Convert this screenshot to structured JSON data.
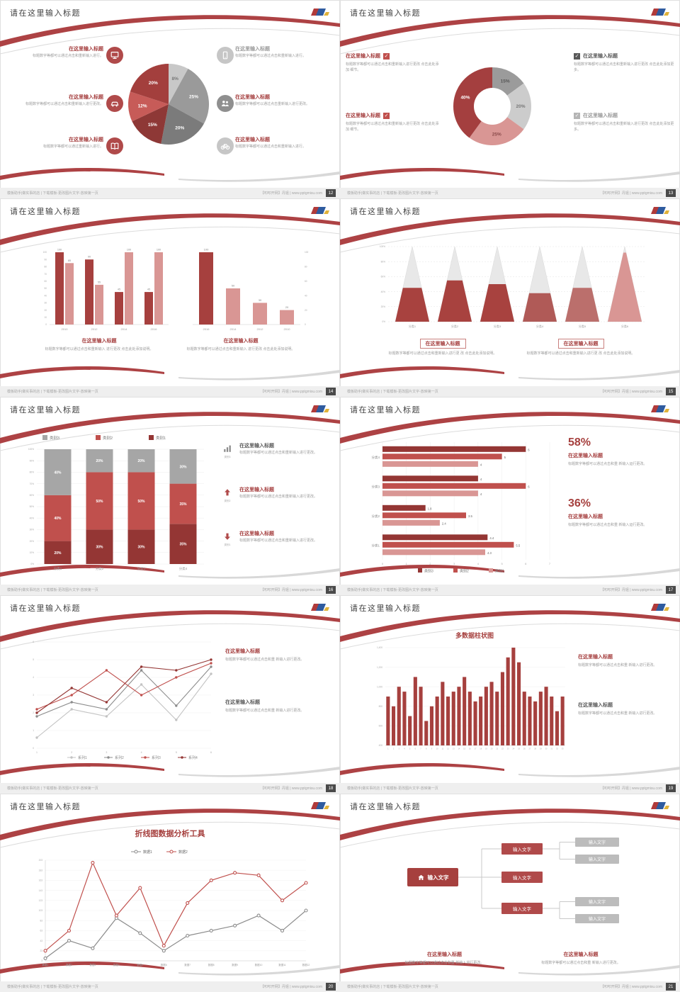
{
  "common": {
    "slide_title": "请在这里输入标题",
    "footer_left": "模板助手|做实事的店 | 下载模板-更改图片文字-放映第一页",
    "footer_right": "【叩叩开网】丹姐 | www.pptgmisu.com",
    "accent_color": "#ad4244"
  },
  "slides": [
    {
      "title": "请在这里输入标题",
      "page_number": "12",
      "type": "pie_callouts",
      "chart_data": {
        "type": "pie",
        "slices": [
          {
            "label": "8%",
            "value": 8,
            "color": "#c8c8c8",
            "label_color": "#777777"
          },
          {
            "label": "25%",
            "value": 25,
            "color": "#9a9a9a",
            "label_color": "#ffffff"
          },
          {
            "label": "20%",
            "value": 20,
            "color": "#7b7b7b",
            "label_color": "#ffffff"
          },
          {
            "label": "15%",
            "value": 15,
            "color": "#8e3836",
            "label_color": "#ffffff"
          },
          {
            "label": "12%",
            "value": 12,
            "color": "#c75b58",
            "label_color": "#ffffff"
          },
          {
            "label": "20%",
            "value": 20,
            "color": "#a33f3d",
            "label_color": "#ffffff"
          }
        ]
      },
      "left_items": [
        {
          "icon": "monitor-icon",
          "icon_bg": "#b04a4a",
          "title": "在这里输入标题",
          "title_color": "#a43d3d",
          "desc": "标题数字等都可以通过点击和重新输入进行。"
        },
        {
          "icon": "car-icon",
          "icon_bg": "#b04a4a",
          "title": "在这里输入标题",
          "title_color": "#a43d3d",
          "desc": "标题数字等都可以通过点击和重新输入进行更改。"
        },
        {
          "icon": "book-icon",
          "icon_bg": "#b04a4a",
          "title": "在这里输入标题",
          "title_color": "#a43d3d",
          "desc": "标题数字等都可以通过重新输入进行。"
        }
      ],
      "right_items": [
        {
          "icon": "phone-icon",
          "icon_bg": "#c6c6c6",
          "title": "在这里输入标题",
          "title_color": "#9a9a9a",
          "desc": "标题数字等都可以通过点击和重新输入进行。"
        },
        {
          "icon": "people-icon",
          "icon_bg": "#8f8f8f",
          "title": "在这里输入标题",
          "title_color": "#a43d3d",
          "desc": "标题数字等都可以通过点击重新输入进行更改。"
        },
        {
          "icon": "bicycle-icon",
          "icon_bg": "#c6c6c6",
          "title": "在这里输入标题",
          "title_color": "#a43d3d",
          "desc": "标题数字等都可以通过点击和重新输入进行。"
        }
      ]
    },
    {
      "title": "请在这里输入标题",
      "page_number": "13",
      "type": "donut_checklist",
      "chart_data": {
        "type": "pie",
        "donut": true,
        "slices": [
          {
            "label": "15%",
            "value": 15,
            "color": "#9b9b9b",
            "label_color": "#555555"
          },
          {
            "label": "20%",
            "value": 20,
            "color": "#cccccc",
            "label_color": "#777777"
          },
          {
            "label": "25%",
            "value": 25,
            "color": "#d99694",
            "label_color": "#8a4a4a"
          },
          {
            "label": "40%",
            "value": 40,
            "color": "#a43f3f",
            "label_color": "#ffffff"
          }
        ]
      },
      "left_items": [
        {
          "title": "在这里输入标题",
          "desc": "标题数字等都可以通过点击和重新输入进行更改 点击此处添加 细节。"
        },
        {
          "title": "在这里输入标题",
          "desc": "标题数字等都可以通过点击和重新输入进行更改 点击此处添加 细节。"
        }
      ],
      "right_items": [
        {
          "checkbox_color": "#595959",
          "title": "在这里输入标题",
          "title_color": "#595959",
          "desc": "标题数字等都可以通过点击和重新输入进行更改 点击此处添加更多。"
        },
        {
          "checkbox_color": "#b5b5b5",
          "title": "在这里输入标题",
          "title_color": "#9a9a9a",
          "desc": "标题数字等都可以通过点击和重新输入进行更改 点击此处添加更多。"
        }
      ]
    },
    {
      "title": "请在这里输入标题",
      "page_number": "14",
      "type": "dual_bars",
      "chart_data": [
        {
          "type": "bar",
          "categories": [
            "2010",
            "2012",
            "2014",
            "2016"
          ],
          "ylim": [
            0,
            100
          ],
          "series": [
            {
              "name": "系列1",
              "color": "#a6403e",
              "values": [
                100,
                90,
                45,
                45
              ]
            },
            {
              "name": "系列2",
              "color": "#d99694",
              "values": [
                85,
                55,
                100,
                100
              ]
            }
          ]
        },
        {
          "type": "bar",
          "categories": [
            "2016",
            "2014",
            "2012",
            "2010"
          ],
          "ylim": [
            0,
            100
          ],
          "values": [
            100,
            50,
            30,
            20
          ],
          "colors": [
            "#a6403e",
            "#d99694",
            "#d99694",
            "#d99694"
          ]
        }
      ],
      "block1": {
        "title": "在这里输入标题",
        "desc": "标题数字等都可以通过点击和重新输入 进行更改 点击此处添加说明。"
      },
      "block2": {
        "title": "在这里输入标题",
        "desc": "标题数字等都可以通过点击和重新输入 进行更改 点击此处添加说明。"
      }
    },
    {
      "title": "请在这里输入标题",
      "page_number": "15",
      "type": "pyramids",
      "chart_data": {
        "type": "pyramid",
        "categories": [
          "分类1",
          "分类2",
          "分类3",
          "分类4",
          "分类5",
          "分类6"
        ],
        "fill_percent": [
          45,
          55,
          50,
          38,
          45,
          92
        ],
        "colors": [
          "#a8423f",
          "#a8423f",
          "#a8423f",
          "#b05a57",
          "#bb6f6c",
          "#d99694"
        ],
        "yticks": [
          "0%",
          "20%",
          "40%",
          "60%",
          "80%",
          "100%"
        ]
      },
      "block1": {
        "title": "在这里输入标题",
        "desc": "标题数字等都可以通过点击和重新输入进行更 改 点击此处添加说明。"
      },
      "block2": {
        "title": "在这里输入标题",
        "desc": "标题数字等都可以通过点击和重新输入进行更 改 点击此处添加说明。"
      }
    },
    {
      "title": "请在这里输入标题",
      "page_number": "16",
      "type": "stacked_bars",
      "legend": [
        {
          "label": "类别3",
          "color": "#a6a6a6"
        },
        {
          "label": "类别2",
          "color": "#c0504d"
        },
        {
          "label": "类别1",
          "color": "#943634"
        }
      ],
      "chart_data": {
        "type": "bar",
        "stacked": true,
        "categories": [
          "分类1",
          "分类2",
          "分类3",
          "分类4"
        ],
        "ylim": [
          0,
          100
        ],
        "series": [
          {
            "name": "类别1",
            "color": "#943634",
            "values": [
              20,
              30,
              30,
              35
            ]
          },
          {
            "name": "类别2",
            "color": "#c0504d",
            "values": [
              40,
              50,
              50,
              35
            ]
          },
          {
            "name": "类别3",
            "color": "#a6a6a6",
            "values": [
              40,
              20,
              20,
              30
            ]
          }
        ]
      },
      "right_items": [
        {
          "icon": "bar-chart-icon",
          "icon_color": "#8c8c8c",
          "icon_label": "类别3",
          "title": "在这里输入标题",
          "title_color": "#595959",
          "desc": "标题数字等都可以通过点击和重新输入进行更改。"
        },
        {
          "icon": "arrow-up-icon",
          "icon_color": "#b04a4a",
          "icon_label": "类别2",
          "title": "在这里输入标题",
          "title_color": "#a43d3d",
          "desc": "标题数字等都可以通过点击和重新输入进行更改。"
        },
        {
          "icon": "arrow-down-icon",
          "icon_color": "#b04a4a",
          "icon_label": "类别1",
          "title": "在这里输入标题",
          "title_color": "#a43d3d",
          "desc": "标题数字等都可以通过点击和重新输入进行更改。"
        }
      ]
    },
    {
      "title": "请在这里输入标题",
      "page_number": "17",
      "type": "hbar_stats",
      "chart_data": {
        "type": "bar",
        "horizontal": true,
        "categories": [
          "分类4",
          "分类3",
          "分类2",
          "分类1"
        ],
        "xlim": [
          0,
          7
        ],
        "series": [
          {
            "name": "类别3",
            "color": "#943634",
            "values": [
              6,
              4,
              1.8,
              4.4
            ]
          },
          {
            "name": "类别2",
            "color": "#c0504d",
            "values": [
              5,
              6,
              3.5,
              5.5
            ]
          },
          {
            "name": "类别1",
            "color": "#d99694",
            "values": [
              4,
              4,
              2.4,
              4.3
            ]
          }
        ]
      },
      "legend": [
        {
          "label": "类别3",
          "color": "#943634"
        },
        {
          "label": "类别2",
          "color": "#c0504d"
        },
        {
          "label": "类别1",
          "color": "#d99694"
        }
      ],
      "stats": [
        {
          "value": "58%",
          "title": "在这里输入标题",
          "desc": "标题数字等都可以通过点击和重 新输入运行更改。"
        },
        {
          "value": "36%",
          "title": "在这里输入标题",
          "desc": "标题数字等都可以通过点击和重 新输入运行更改。"
        }
      ]
    },
    {
      "title": "请在这里输入标题",
      "page_number": "18",
      "type": "line_chart",
      "chart_data": {
        "type": "line",
        "x": [
          1,
          2,
          3,
          4,
          5,
          6
        ],
        "ylim": [
          0,
          6
        ],
        "series": [
          {
            "name": "系列1",
            "color": "#c3c3c3",
            "values": [
              0.6,
              2.2,
              1.8,
              3.6,
              1.6,
              4.2
            ]
          },
          {
            "name": "系列2",
            "color": "#8c8c8c",
            "values": [
              1.8,
              2.6,
              2.2,
              4.4,
              2.4,
              4.6
            ]
          },
          {
            "name": "系列3",
            "color": "#c0504d",
            "values": [
              2.2,
              3.0,
              4.4,
              3.0,
              4.0,
              4.8
            ]
          },
          {
            "name": "系列4",
            "color": "#943634",
            "values": [
              2.0,
              3.4,
              2.6,
              4.6,
              4.4,
              5.0
            ]
          }
        ]
      },
      "block1": {
        "title": "在这里输入标题",
        "title_color": "#a43d3d",
        "desc": "标题数字等都可以通过点击和重 新输入进行更改。"
      },
      "block2": {
        "title": "在这里输入标题",
        "title_color": "#595959",
        "desc": "标题数字等都可以通过点击和重 新输入进行更改。"
      }
    },
    {
      "title": "请在这里输入标题",
      "page_number": "19",
      "type": "column_chart",
      "chart_title": "多数据柱状图",
      "chart_data": {
        "type": "bar",
        "color": "#a6403e",
        "ylim": [
          400,
          1400
        ],
        "yticks": [
          "1,400",
          "1,200",
          "1,000",
          "800",
          "600",
          "400"
        ],
        "x_labels": [
          "1",
          "2",
          "3",
          "4",
          "5",
          "6",
          "7",
          "8",
          "9",
          "10",
          "11",
          "12",
          "13",
          "14",
          "15",
          "16",
          "17",
          "18",
          "19",
          "20",
          "21",
          "22",
          "23",
          "24",
          "25",
          "26",
          "27",
          "28",
          "29",
          "30",
          "31",
          "32",
          "33"
        ],
        "values": [
          900,
          800,
          1000,
          950,
          700,
          1100,
          1000,
          650,
          800,
          900,
          1050,
          900,
          950,
          1000,
          1100,
          950,
          850,
          900,
          1000,
          1050,
          950,
          1150,
          1300,
          1400,
          1250,
          950,
          900,
          850,
          950,
          1000,
          900,
          750,
          900
        ]
      },
      "block1": {
        "title": "在这里输入标题",
        "title_color": "#a43d3d",
        "desc": "标题数字等都可以通过点击和重 新输入进行更改。"
      },
      "block2": {
        "title": "在这里输入标题",
        "title_color": "#595959",
        "desc": "标题数字等都可以通过点击和重 新输入进行更改。"
      }
    },
    {
      "title": "请在这里输入标题",
      "page_number": "20",
      "type": "line2_chart",
      "chart_title": "折线图数据分析工具",
      "legend": [
        {
          "label": "数据1",
          "color": "#8c8c8c"
        },
        {
          "label": "数据2",
          "color": "#c0504d"
        }
      ],
      "chart_data": {
        "type": "line",
        "ylim": [
          3,
          203
        ],
        "yticks": [
          "203",
          "183",
          "163",
          "143",
          "123",
          "103",
          "83",
          "63",
          "43",
          "23",
          "3"
        ],
        "x_labels": [
          "数据1",
          "数据2",
          "数据3",
          "数据4",
          "数据5",
          "数据6",
          "数据7",
          "数据8",
          "数据9",
          "数据10",
          "数据11",
          "数据12"
        ],
        "series": [
          {
            "name": "数据1",
            "color": "#8c8c8c",
            "values": [
              8,
              43,
              28,
              88,
              58,
              23,
              53,
              63,
              73,
              93,
              63,
              103
            ]
          },
          {
            "name": "数据2",
            "color": "#c0504d",
            "values": [
              23,
              63,
              198,
              93,
              148,
              33,
              118,
              163,
              178,
              173,
              123,
              158
            ]
          }
        ]
      }
    },
    {
      "title": "请在这里输入标题",
      "page_number": "21",
      "type": "org_diagram",
      "root": {
        "label": "输入文字",
        "icon": "home-icon"
      },
      "mid_nodes": [
        "输入文字",
        "输入文字",
        "输入文字"
      ],
      "leaf_nodes": [
        "输入文字",
        "输入文字",
        "输入文字",
        "输入文字"
      ],
      "block1": {
        "title": "在这里输入标题",
        "desc": "标题数字等都可以通过点击和重 新输入进行更改。"
      },
      "block2": {
        "title": "在这里输入标题",
        "desc": "标题数字等都可以通过点击和重 新输入进行更改。"
      }
    }
  ]
}
